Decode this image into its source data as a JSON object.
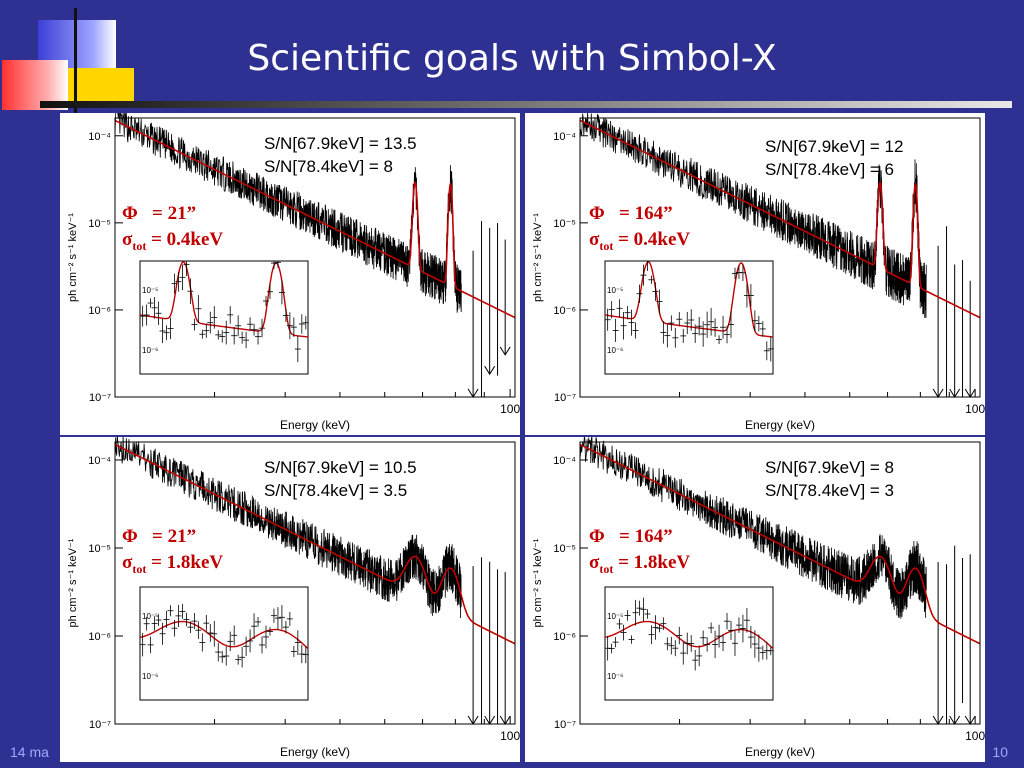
{
  "slide": {
    "title": "Scientific goals with Simbol-X",
    "footer_left": "14 ma",
    "footer_right": "10",
    "colors": {
      "background": "#2e3192",
      "model": "#c00000",
      "data": "#000000",
      "annotation": "#c00000"
    }
  },
  "axis_texts": {
    "ylabel": "ph cm⁻² s⁻¹ keV⁻¹",
    "xlabel": "Energy (keV)",
    "x_tick": "100",
    "y_ticks": [
      "10⁻⁴",
      "10⁻⁵",
      "10⁻⁶",
      "10⁻⁷"
    ],
    "inset_y_ticks": [
      "10⁻⁵",
      "10⁻⁶"
    ]
  },
  "chart_data": [
    {
      "type": "line",
      "sn1": "S/N[67.9keV] = 13.5",
      "sn2": "S/N[78.4keV] = 8",
      "phi_label": "Φ",
      "phi_value": "= 21”",
      "sigma_label": "σ",
      "sigma_sub": "tot",
      "sigma_value": "= 0.4keV",
      "xscale": "log",
      "yscale": "log",
      "ylim": [
        1e-07,
        0.00016
      ],
      "line_energies_keV": [
        67.9,
        78.4
      ],
      "line_width_keV": 0.4,
      "line_peaks": [
        2.6e-05,
        2.6e-05
      ]
    },
    {
      "type": "line",
      "sn1": "S/N[67.9keV] = 12",
      "sn2": "S/N[78.4keV] = 6",
      "phi_label": "Φ",
      "phi_value": "= 164”",
      "sigma_label": "σ",
      "sigma_sub": "tot",
      "sigma_value": "= 0.4keV",
      "xscale": "log",
      "yscale": "log",
      "ylim": [
        1e-07,
        0.00016
      ],
      "line_energies_keV": [
        67.9,
        78.4
      ],
      "line_width_keV": 0.4,
      "line_peaks": [
        2.6e-05,
        2.6e-05
      ]
    },
    {
      "type": "line",
      "sn1": "S/N[67.9keV] = 10.5",
      "sn2": "S/N[78.4keV] = 3.5",
      "phi_label": "Φ",
      "phi_value": "= 21”",
      "sigma_label": "σ",
      "sigma_sub": "tot",
      "sigma_value": "= 1.8keV",
      "xscale": "log",
      "yscale": "log",
      "ylim": [
        1e-07,
        0.00016
      ],
      "line_energies_keV": [
        67.9,
        78.4
      ],
      "line_width_keV": 1.8,
      "line_peaks": [
        5e-06,
        4e-06
      ]
    },
    {
      "type": "line",
      "sn1": "S/N[67.9keV] = 8",
      "sn2": "S/N[78.4keV] = 3",
      "phi_label": "Φ",
      "phi_value": "= 164”",
      "sigma_label": "σ",
      "sigma_sub": "tot",
      "sigma_value": "= 1.8keV",
      "xscale": "log",
      "yscale": "log",
      "ylim": [
        1e-07,
        0.00016
      ],
      "line_energies_keV": [
        67.9,
        78.4
      ],
      "line_width_keV": 1.8,
      "line_peaks": [
        5e-06,
        4e-06
      ]
    }
  ]
}
